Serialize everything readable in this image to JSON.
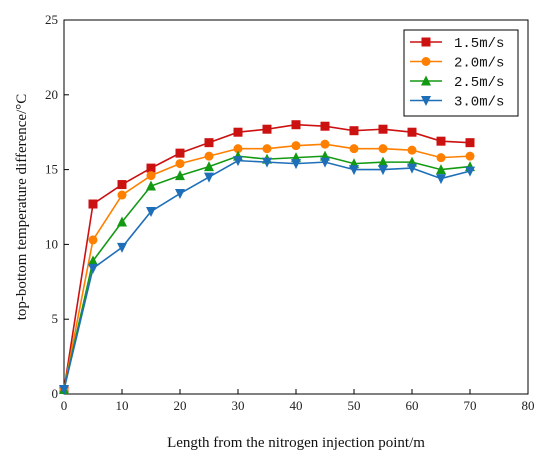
{
  "chart_data": {
    "type": "line",
    "xlabel": "Length from the nitrogen injection point/m",
    "ylabel": "top-bottom temperature difference/°C",
    "xlim": [
      0,
      80
    ],
    "ylim": [
      0,
      25
    ],
    "xticks": [
      0,
      10,
      20,
      30,
      40,
      50,
      60,
      70,
      80
    ],
    "yticks": [
      0,
      5,
      10,
      15,
      20,
      25
    ],
    "grid": false,
    "legend_position": "top-right",
    "x": [
      0,
      5,
      10,
      15,
      20,
      25,
      30,
      35,
      40,
      45,
      50,
      55,
      60,
      65,
      70
    ],
    "series": [
      {
        "name": "1.5m/s",
        "color": "#cc1111",
        "marker": "square",
        "values": [
          0.3,
          12.7,
          14.0,
          15.1,
          16.1,
          16.8,
          17.5,
          17.7,
          18.0,
          17.9,
          17.6,
          17.7,
          17.5,
          16.9,
          16.8
        ]
      },
      {
        "name": "2.0m/s",
        "color": "#ff8000",
        "marker": "circle",
        "values": [
          0.3,
          10.3,
          13.3,
          14.6,
          15.4,
          15.9,
          16.4,
          16.4,
          16.6,
          16.7,
          16.4,
          16.4,
          16.3,
          15.8,
          15.9
        ]
      },
      {
        "name": "2.5m/s",
        "color": "#139a13",
        "marker": "triangle-up",
        "values": [
          0.3,
          8.9,
          11.5,
          13.9,
          14.6,
          15.2,
          15.9,
          15.7,
          15.8,
          15.9,
          15.4,
          15.5,
          15.5,
          15.0,
          15.2
        ]
      },
      {
        "name": "3.0m/s",
        "color": "#1f6fb8",
        "marker": "triangle-down",
        "values": [
          0.3,
          8.4,
          9.8,
          12.2,
          13.4,
          14.5,
          15.6,
          15.5,
          15.4,
          15.5,
          15.0,
          15.0,
          15.1,
          14.4,
          14.9
        ]
      }
    ]
  }
}
